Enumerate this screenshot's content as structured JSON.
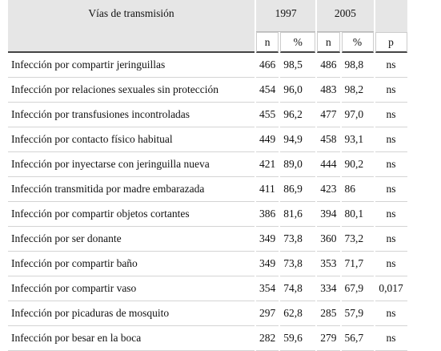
{
  "table": {
    "header": {
      "label": "Vías de transmisión",
      "groups": [
        "1997",
        "2005"
      ],
      "columns": [
        "n",
        "%",
        "n",
        "%",
        "p"
      ]
    },
    "rows": [
      [
        "Infección por compartir jeringuillas",
        "466",
        "98,5",
        "486",
        "98,8",
        "ns"
      ],
      [
        "Infección por relaciones sexuales sin protección",
        "454",
        "96,0",
        "483",
        "98,2",
        "ns"
      ],
      [
        "Infección por transfusiones incontroladas",
        "455",
        "96,2",
        "477",
        "97,0",
        "ns"
      ],
      [
        "Infección por contacto físico habitual",
        "449",
        "94,9",
        "458",
        "93,1",
        "ns"
      ],
      [
        "Infección por inyectarse con jeringuilla nueva",
        "421",
        "89,0",
        "444",
        "90,2",
        "ns"
      ],
      [
        "Infección transmitida por madre embarazada",
        "411",
        "86,9",
        "423",
        "86",
        "ns"
      ],
      [
        "Infección por compartir objetos cortantes",
        "386",
        "81,6",
        "394",
        "80,1",
        "ns"
      ],
      [
        "Infección por ser donante",
        "349",
        "73,8",
        "360",
        "73,2",
        "ns"
      ],
      [
        "Infección por compartir baño",
        "349",
        "73,8",
        "353",
        "71,7",
        "ns"
      ],
      [
        "Infección por compartir vaso",
        "354",
        "74,8",
        "334",
        "67,9",
        "0,017"
      ],
      [
        "Infección por picaduras de mosquito",
        "297",
        "62,8",
        "285",
        "57,9",
        "ns"
      ],
      [
        "Infección por besar en la boca",
        "282",
        "59,6",
        "279",
        "56,7",
        "ns"
      ]
    ]
  }
}
